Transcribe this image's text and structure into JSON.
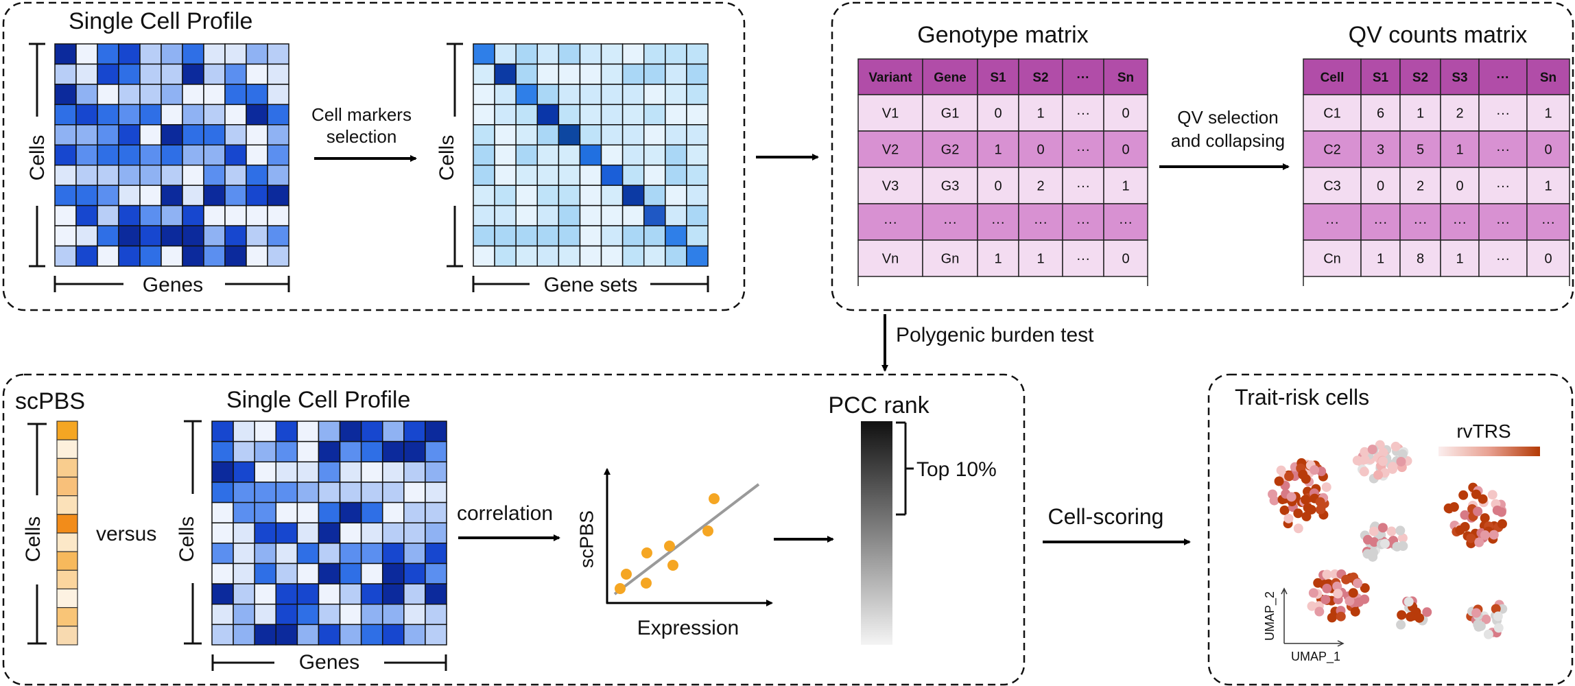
{
  "panels": {
    "profile": {
      "title": "Single Cell Profile",
      "cells_label": "Cells",
      "genes_label": "Genes",
      "gene_sets_label": "Gene sets",
      "arrow_label": [
        "Cell markers",
        "selection"
      ]
    },
    "genotype": {
      "title": "Genotype matrix",
      "headers": [
        "Variant",
        "Gene",
        "S1",
        "S2",
        "···",
        "Sn"
      ],
      "rows": [
        [
          "V1",
          "G1",
          "0",
          "1",
          "···",
          "0"
        ],
        [
          "V2",
          "G2",
          "1",
          "0",
          "···",
          "0"
        ],
        [
          "V3",
          "G3",
          "0",
          "2",
          "···",
          "1"
        ],
        [
          "···",
          "···",
          "···",
          "···",
          "···",
          "···"
        ],
        [
          "Vn",
          "Gn",
          "1",
          "1",
          "···",
          "0"
        ]
      ]
    },
    "qv": {
      "title": "QV counts matrix",
      "arrow_label": [
        "QV selection",
        "and collapsing"
      ],
      "headers": [
        "Cell",
        "S1",
        "S2",
        "S3",
        "···",
        "Sn"
      ],
      "rows": [
        [
          "C1",
          "6",
          "1",
          "2",
          "···",
          "1"
        ],
        [
          "C2",
          "3",
          "5",
          "1",
          "···",
          "0"
        ],
        [
          "C3",
          "0",
          "2",
          "0",
          "···",
          "1"
        ],
        [
          "···",
          "···",
          "···",
          "···",
          "···",
          "···"
        ],
        [
          "Cn",
          "1",
          "8",
          "1",
          "···",
          "0"
        ]
      ]
    },
    "burden": {
      "label": "Polygenic burden test"
    },
    "scoring": {
      "scpbs_title": "scPBS",
      "cells_label": "Cells",
      "versus_label": "versus",
      "profile_title": "Single Cell Profile",
      "genes_label": "Genes",
      "correlation_label": "correlation",
      "scatter_ylabel": "scPBS",
      "scatter_xlabel": "Expression",
      "pcc_title": "PCC rank",
      "top_label": "Top 10%"
    },
    "trait": {
      "title": "Trait-risk cells",
      "cell_scoring_label": "Cell-scoring",
      "legend_label": "rvTRS",
      "umap_y": "UMAP_2",
      "umap_x": "UMAP_1"
    }
  },
  "colors": {
    "blue_dark": "#0a2a9a",
    "blue_mid": "#2f6fe6",
    "blue_light": "#dde9fa",
    "purple_header": "#b14da8",
    "purple_row": "#d891d2",
    "purple_light": "#f3dcf1",
    "orange": "#f5a623",
    "rust": "#b83b0a",
    "pink": "#e49aa4",
    "grey_dot": "#d0d0d0"
  }
}
